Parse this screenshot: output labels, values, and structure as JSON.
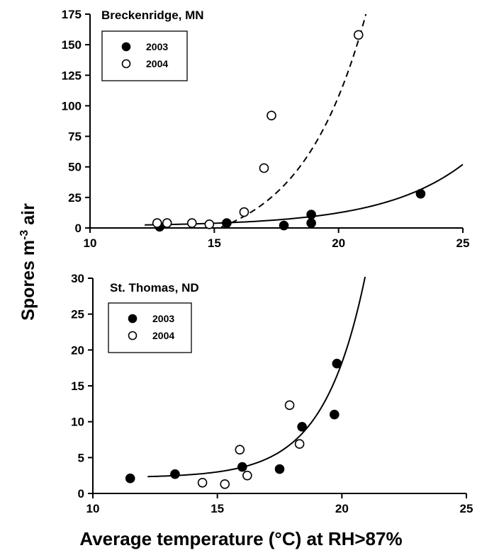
{
  "x_axis_label": "Average temperature (°C) at RH>87%",
  "y_axis_label": {
    "main": "Spores m",
    "sup": "-3",
    "rest": " air"
  },
  "chart_data": [
    {
      "type": "scatter",
      "title": "Breckenridge, MN",
      "xlim": [
        10,
        25
      ],
      "ylim": [
        0,
        175
      ],
      "x_ticks": [
        "10",
        "15",
        "20",
        "25"
      ],
      "y_ticks": [
        "0",
        "25",
        "50",
        "75",
        "100",
        "125",
        "150",
        "175"
      ],
      "legend_position": "top-left",
      "series": [
        {
          "name": "2003",
          "marker": "filled-circle",
          "fit": "solid",
          "points": [
            [
              12.8,
              1
            ],
            [
              15.5,
              4
            ],
            [
              17.8,
              2
            ],
            [
              18.9,
              4
            ],
            [
              18.9,
              11
            ],
            [
              23.3,
              28
            ]
          ],
          "fit_curve": {
            "x_start": 12.2,
            "x_end": 25,
            "y_start": 2.5,
            "y_end": 52
          }
        },
        {
          "name": "2004",
          "marker": "open-circle",
          "fit": "dashed",
          "points": [
            [
              12.7,
              4
            ],
            [
              13.1,
              4
            ],
            [
              14.1,
              4
            ],
            [
              14.8,
              3
            ],
            [
              16.2,
              13
            ],
            [
              17.0,
              49
            ],
            [
              17.3,
              92
            ],
            [
              20.8,
              158
            ]
          ],
          "fit_curve": {
            "x_start": 12.8,
            "x_end": 21.1,
            "y_start": -12,
            "y_end": 175
          }
        }
      ]
    },
    {
      "type": "scatter",
      "title": "St. Thomas, ND",
      "xlim": [
        10,
        25
      ],
      "ylim": [
        0,
        30
      ],
      "x_ticks": [
        "10",
        "15",
        "20",
        "25"
      ],
      "y_ticks": [
        "0",
        "5",
        "10",
        "15",
        "20",
        "25",
        "30"
      ],
      "legend_position": "top-left",
      "series": [
        {
          "name": "2003",
          "marker": "filled-circle",
          "fit": "solid",
          "points": [
            [
              11.5,
              2.1
            ],
            [
              13.3,
              2.7
            ],
            [
              16.0,
              3.7
            ],
            [
              17.5,
              3.4
            ],
            [
              18.4,
              9.3
            ],
            [
              19.7,
              11.0
            ],
            [
              19.8,
              18.1
            ]
          ],
          "fit_curve": {
            "x_start": 12.2,
            "x_end": 20.95,
            "y_start": 2.35,
            "y_end": 30.5
          }
        },
        {
          "name": "2004",
          "marker": "open-circle",
          "fit": "none",
          "points": [
            [
              14.4,
              1.5
            ],
            [
              15.3,
              1.3
            ],
            [
              15.9,
              6.1
            ],
            [
              16.2,
              2.5
            ],
            [
              17.9,
              12.3
            ],
            [
              18.3,
              6.9
            ]
          ]
        }
      ]
    }
  ]
}
